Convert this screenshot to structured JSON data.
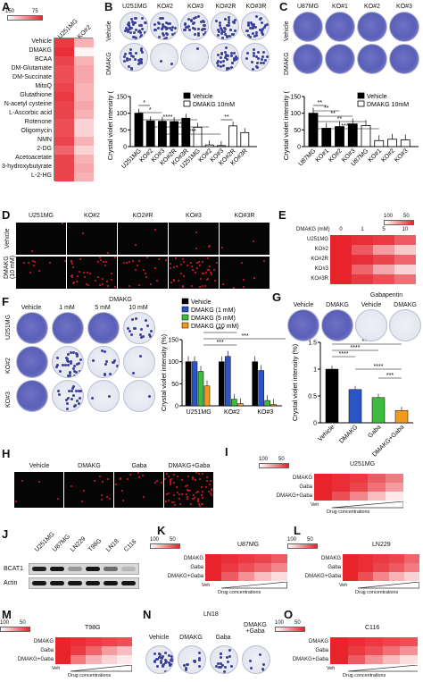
{
  "panels": {
    "A": {
      "label": "A",
      "scale_labels": [
        "150",
        "75"
      ],
      "columns": [
        "U251MG",
        "KO#2"
      ],
      "rows": [
        "Vehicle",
        "DMAKG",
        "BCAA",
        "DM-Glutamate",
        "DM-Succinate",
        "MitoQ",
        "Glutathione",
        "N-acetyl cysteine",
        "L-Ascorbic acid",
        "Rotenone",
        "Oligomycin",
        "NMN",
        "2-DG",
        "Acetoacetate",
        "3-hydroxybutyrate",
        "L-2-HG"
      ],
      "values": [
        [
          0.9,
          0.35
        ],
        [
          0.95,
          0.05
        ],
        [
          0.85,
          0.35
        ],
        [
          0.8,
          0.4
        ],
        [
          0.8,
          0.4
        ],
        [
          0.85,
          0.35
        ],
        [
          0.9,
          0.35
        ],
        [
          0.85,
          0.4
        ],
        [
          0.85,
          0.35
        ],
        [
          0.8,
          0.2
        ],
        [
          0.8,
          0.2
        ],
        [
          0.85,
          0.35
        ],
        [
          0.7,
          0.2
        ],
        [
          0.85,
          0.35
        ],
        [
          0.85,
          0.4
        ],
        [
          0.85,
          0.35
        ]
      ],
      "colors": {
        "high": "#e8232c",
        "low": "#ffffff"
      }
    },
    "B": {
      "label": "B",
      "columns": [
        "U251MG",
        "KO#2",
        "KO#3",
        "KO#2R",
        "KO#3R"
      ],
      "rows": [
        "Vehicle",
        "DMAKG"
      ],
      "legend": [
        "Vehicle",
        "DMAKG 10mM"
      ],
      "sig": [
        "*",
        "*",
        "****",
        "****",
        "****",
        "**"
      ]
    },
    "C": {
      "label": "C",
      "columns": [
        "U87MG",
        "KO#1",
        "KO#2",
        "KO#3"
      ],
      "rows": [
        "Vehicle",
        "DMAKG"
      ],
      "legend": [
        "Vehicle",
        "DMAKG 10mM"
      ],
      "sig": [
        "**",
        "**",
        "**",
        "**",
        "****"
      ]
    },
    "D": {
      "label": "D",
      "columns": [
        "U251MG",
        "KO#2",
        "KO2#R",
        "KO#3",
        "KO#3R"
      ],
      "rows": [
        "Vehicle",
        "DMAKG\n(10 mM)"
      ]
    },
    "E": {
      "label": "E",
      "scale_labels": [
        "100",
        "50"
      ],
      "header": "DMAKG (mM)",
      "doses": [
        "0",
        "1",
        "5",
        "10"
      ],
      "rows": [
        "U251MG",
        "KO#2",
        "KO#2R",
        "KO#3",
        "KO#3R"
      ]
    },
    "F": {
      "label": "F",
      "header": "DMAKG",
      "columns": [
        "Vehicle",
        "1 mM",
        "5 mM",
        "10 mM"
      ],
      "rows": [
        "U251MG",
        "KO#2",
        "KO#3"
      ],
      "legend": [
        "Vehicle",
        "DMAKG (1 mM)",
        "DMAKG (5 mM)",
        "DMAKG (10 mM)"
      ],
      "sig": [
        "***",
        "***",
        "***"
      ]
    },
    "G": {
      "label": "G",
      "header": "Gabapentin",
      "columns": [
        "Vehicle",
        "DMAKG",
        "Vehicle",
        "DMAKG"
      ],
      "sig": [
        "****",
        "****",
        "****",
        "****",
        "***"
      ]
    },
    "H": {
      "label": "H",
      "columns": [
        "Vehicle",
        "DMAKG",
        "Gaba",
        "DMAKG+Gaba"
      ]
    },
    "I": {
      "label": "I",
      "title": "U251MG",
      "scale_labels": [
        "100",
        "50"
      ],
      "rows": [
        "DMAKG",
        "Gaba",
        "DMAKG+Gaba"
      ],
      "veh": "Veh",
      "conc": "Drug concentrations"
    },
    "J": {
      "label": "J",
      "columns": [
        "U251MG",
        "U87MG",
        "LN229",
        "T98G",
        "LN18",
        "C116"
      ],
      "rows": [
        "BCAT1",
        "Actin"
      ]
    },
    "K": {
      "label": "K",
      "title": "U87MG",
      "scale_labels": [
        "100",
        "50"
      ],
      "rows": [
        "DMAKG",
        "Gaba",
        "DMAKG+Gaba"
      ],
      "veh": "Veh",
      "conc": "Drug concentrations"
    },
    "L": {
      "label": "L",
      "title": "LN229",
      "scale_labels": [
        "100",
        "50"
      ],
      "rows": [
        "DMAKG",
        "Gaba",
        "DMAKG+Gaba"
      ],
      "veh": "Veh",
      "conc": "Drug concentrations"
    },
    "M": {
      "label": "M",
      "title": "T98G",
      "scale_labels": [
        "100",
        "50"
      ],
      "rows": [
        "DMAKG",
        "Gaba",
        "DMAKG+Gaba"
      ],
      "veh": "Veh",
      "conc": "Drug concentrations"
    },
    "N": {
      "label": "N",
      "title": "LN18",
      "columns": [
        "Vehicle",
        "DMAKG",
        "Gaba",
        "DMAKG\n+Gaba"
      ]
    },
    "O": {
      "label": "O",
      "title": "C116",
      "scale_labels": [
        "100",
        "50"
      ],
      "rows": [
        "DMAKG",
        "Gaba",
        "DMAKG+Gaba"
      ],
      "veh": "Veh",
      "conc": "Drug concentrations"
    }
  },
  "chart_data": [
    {
      "type": "bar",
      "id": "B",
      "ylabel": "Crystal violet intensity (%)",
      "ylim": [
        0,
        150
      ],
      "yticks": [
        0,
        50,
        100,
        150
      ],
      "categories": [
        "U251MG",
        "KO#2",
        "KO#3",
        "KO#2R",
        "KO#3R",
        "U251MG",
        "KO#2",
        "KO#3",
        "KO#2R",
        "KO#3R"
      ],
      "series": [
        {
          "name": "Vehicle",
          "values": [
            100,
            77,
            76,
            75,
            85,
            null,
            null,
            null,
            null,
            null
          ]
        },
        {
          "name": "DMAKG 10mM",
          "values": [
            null,
            null,
            null,
            null,
            null,
            58,
            5,
            3,
            62,
            42
          ]
        }
      ]
    },
    {
      "type": "bar",
      "id": "C",
      "ylabel": "Crystal violet intensity (%)",
      "ylim": [
        0,
        150
      ],
      "yticks": [
        0,
        50,
        100,
        150
      ],
      "categories": [
        "U87MG",
        "KO#1",
        "KO#2",
        "KO#3",
        "U87MG",
        "KO#1",
        "KO#2",
        "KO#3"
      ],
      "series": [
        {
          "name": "Vehicle",
          "values": [
            100,
            55,
            60,
            68,
            null,
            null,
            null,
            null
          ]
        },
        {
          "name": "DMAKG 10mM",
          "values": [
            null,
            null,
            null,
            null,
            63,
            18,
            22,
            20
          ]
        }
      ]
    },
    {
      "type": "bar",
      "id": "F",
      "ylabel": "Crystal violet intensity (%)",
      "ylim": [
        0,
        150
      ],
      "yticks": [
        0,
        50,
        100,
        150
      ],
      "categories": [
        "U251MG",
        "KO#2",
        "KO#3"
      ],
      "series": [
        {
          "name": "Vehicle",
          "values": [
            100,
            100,
            100
          ]
        },
        {
          "name": "DMAKG (1 mM)",
          "values": [
            100,
            112,
            80
          ]
        },
        {
          "name": "DMAKG (5 mM)",
          "values": [
            78,
            15,
            12
          ]
        },
        {
          "name": "DMAKG (10 mM)",
          "values": [
            45,
            5,
            3
          ]
        }
      ],
      "colors": [
        "#000000",
        "#2b55c7",
        "#3dbb3d",
        "#f29a1e"
      ]
    },
    {
      "type": "bar",
      "id": "G",
      "ylabel": "Crystal violet intensity (%)",
      "ylim": [
        0,
        1.5
      ],
      "yticks": [
        0.0,
        0.5,
        1.0,
        1.5
      ],
      "categories": [
        "Vehicle",
        "DMAKG",
        "Gaba",
        "DMAKG+Gaba"
      ],
      "values": [
        1.0,
        0.62,
        0.47,
        0.23
      ],
      "colors": [
        "#000000",
        "#2b55c7",
        "#3dbb3d",
        "#f29a1e"
      ]
    }
  ]
}
